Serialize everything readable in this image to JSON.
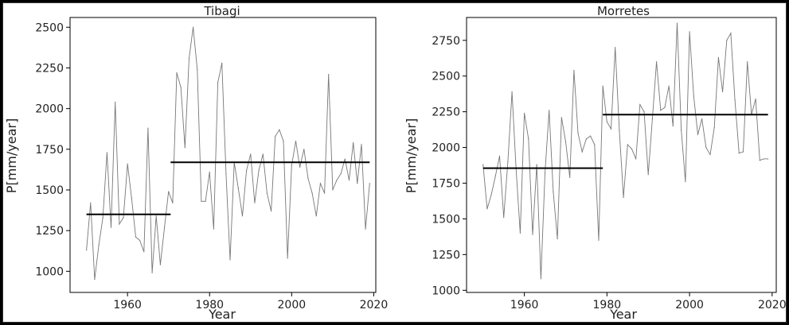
{
  "chart_data": [
    {
      "type": "line",
      "title": "Tibagi",
      "xlabel": "Year",
      "ylabel": "P[mm/year]",
      "xlim": [
        1946,
        2020.5
      ],
      "ylim": [
        870,
        2560
      ],
      "x_ticks": [
        1960,
        1980,
        2000,
        2020
      ],
      "y_ticks": [
        1000,
        1250,
        1500,
        1750,
        2000,
        2250,
        2500
      ],
      "grid": false,
      "series": [
        {
          "x": [
            1950,
            1951,
            1952,
            1953,
            1954,
            1955,
            1956,
            1957,
            1958,
            1959,
            1960,
            1961,
            1962,
            1963,
            1964,
            1965,
            1966,
            1967,
            1968,
            1969,
            1970,
            1971,
            1972,
            1973,
            1974,
            1975,
            1976,
            1977,
            1978,
            1979,
            1980,
            1981,
            1982,
            1983,
            1984,
            1985,
            1986,
            1987,
            1988,
            1989,
            1990,
            1991,
            1992,
            1993,
            1994,
            1995,
            1996,
            1997,
            1998,
            1999,
            2000,
            2001,
            2002,
            2003,
            2004,
            2005,
            2006,
            2007,
            2008,
            2009,
            2010,
            2011,
            2012,
            2013,
            2014,
            2015,
            2016,
            2017,
            2018,
            2019
          ],
          "values": [
            1130,
            1420,
            950,
            1160,
            1330,
            1730,
            1270,
            2040,
            1290,
            1330,
            1660,
            1450,
            1210,
            1190,
            1120,
            1880,
            990,
            1340,
            1040,
            1270,
            1490,
            1420,
            2220,
            2130,
            1760,
            2310,
            2500,
            2240,
            1430,
            1430,
            1610,
            1260,
            2160,
            2280,
            1600,
            1070,
            1670,
            1510,
            1340,
            1620,
            1720,
            1420,
            1620,
            1720,
            1480,
            1370,
            1830,
            1870,
            1800,
            1080,
            1650,
            1800,
            1640,
            1750,
            1570,
            1480,
            1340,
            1540,
            1480,
            2210,
            1500,
            1560,
            1600,
            1690,
            1560,
            1790,
            1540,
            1780,
            1260,
            1540
          ],
          "color": "#777777"
        }
      ],
      "segments": [
        {
          "x": [
            1950,
            1970.5
          ],
          "value": 1350,
          "color": "#000000"
        },
        {
          "x": [
            1970.5,
            2019
          ],
          "value": 1670,
          "color": "#000000"
        }
      ]
    },
    {
      "type": "line",
      "title": "Morretes",
      "xlabel": "Year",
      "ylabel": "P[mm/year]",
      "xlim": [
        1946,
        2021
      ],
      "ylim": [
        985,
        2910
      ],
      "x_ticks": [
        1960,
        1980,
        2000,
        2020
      ],
      "y_ticks": [
        1000,
        1250,
        1500,
        1750,
        2000,
        2250,
        2500,
        2750
      ],
      "grid": false,
      "series": [
        {
          "x": [
            1950,
            1951,
            1952,
            1953,
            1954,
            1955,
            1956,
            1957,
            1958,
            1959,
            1960,
            1961,
            1962,
            1963,
            1964,
            1965,
            1966,
            1967,
            1968,
            1969,
            1970,
            1971,
            1972,
            1973,
            1974,
            1975,
            1976,
            1977,
            1978,
            1979,
            1980,
            1981,
            1982,
            1983,
            1984,
            1985,
            1986,
            1987,
            1988,
            1989,
            1990,
            1991,
            1992,
            1993,
            1994,
            1995,
            1996,
            1997,
            1998,
            1999,
            2000,
            2001,
            2002,
            2003,
            2004,
            2005,
            2006,
            2007,
            2008,
            2009,
            2010,
            2011,
            2012,
            2013,
            2014,
            2015,
            2016,
            2017,
            2018,
            2019
          ],
          "values": [
            1880,
            1570,
            1670,
            1800,
            1940,
            1510,
            1900,
            2390,
            1850,
            1400,
            2240,
            2060,
            1390,
            1880,
            1080,
            1820,
            2260,
            1690,
            1360,
            2210,
            2040,
            1790,
            2540,
            2100,
            1970,
            2060,
            2080,
            2020,
            1350,
            2430,
            2180,
            2130,
            2700,
            2120,
            1650,
            2020,
            1990,
            1920,
            2300,
            2250,
            1810,
            2200,
            2600,
            2260,
            2280,
            2430,
            2150,
            2870,
            2120,
            1760,
            2810,
            2360,
            2090,
            2200,
            2000,
            1950,
            2140,
            2630,
            2390,
            2750,
            2800,
            2330,
            1960,
            1970,
            2600,
            2230,
            2340,
            1910,
            1920,
            1920
          ],
          "color": "#777777"
        }
      ],
      "segments": [
        {
          "x": [
            1950,
            1979
          ],
          "value": 1855,
          "color": "#000000"
        },
        {
          "x": [
            1979,
            2019
          ],
          "value": 2230,
          "color": "#000000"
        }
      ]
    }
  ]
}
